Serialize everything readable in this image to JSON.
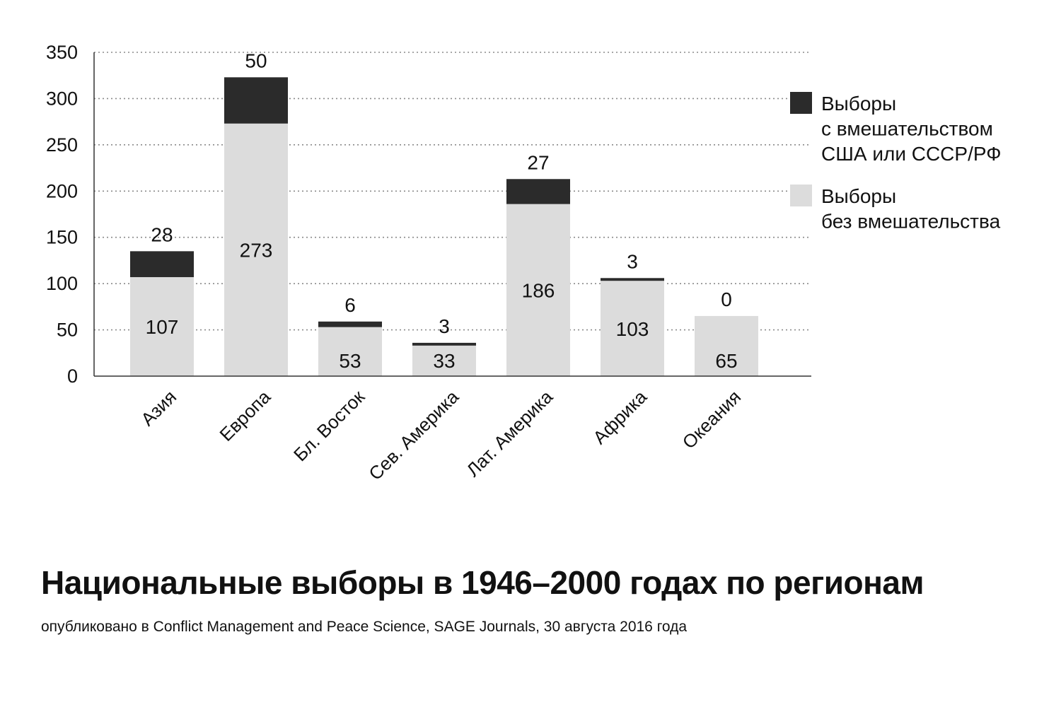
{
  "chart_data": {
    "type": "bar",
    "stacked": true,
    "title": "Национальные выборы в 1946–2000 годах по регионам",
    "subtitle": "опубликовано в Conflict Management and Peace Science, SAGE Journals, 30 августа 2016 года",
    "categories": [
      "Азия",
      "Европа",
      "Бл. Восток",
      "Сев. Америка",
      "Лат. Америка",
      "Африка",
      "Океания"
    ],
    "series": [
      {
        "name": "Выборы без вмешательства",
        "legend_lines": [
          "Выборы",
          "без вмешательства"
        ],
        "color": "#dcdcdc",
        "values": [
          107,
          273,
          53,
          33,
          186,
          103,
          65
        ]
      },
      {
        "name": "Выборы с вмешательством США или СССР/РФ",
        "legend_lines": [
          "Выборы",
          "с вмешательством",
          "США или СССР/РФ"
        ],
        "color": "#2b2b2b",
        "values": [
          28,
          50,
          6,
          3,
          27,
          3,
          0
        ]
      }
    ],
    "yticks": [
      "0",
      "50",
      "100",
      "150",
      "200",
      "250",
      "300",
      "350"
    ],
    "ylim": [
      0,
      350
    ],
    "xlabel": "",
    "ylabel": "",
    "grid": true,
    "legend": "right"
  }
}
